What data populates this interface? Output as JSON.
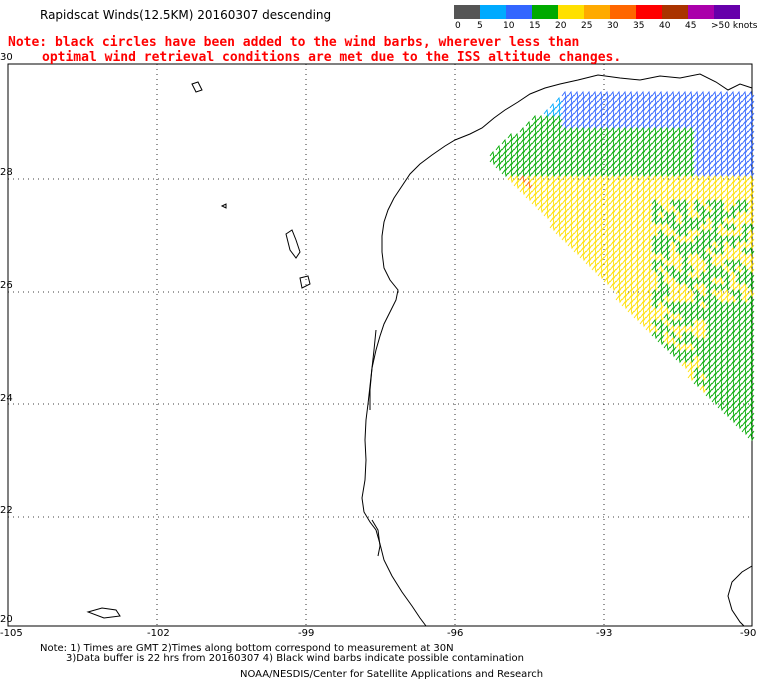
{
  "title": "Rapidscat Winds(12.5KM) 20160307 descending",
  "note": {
    "line1": "Note: black circles have been added to the wind barbs, wherever less than",
    "line2": "optimal wind retrieval conditions are met due to the ISS altitude changes."
  },
  "legend": {
    "labels": [
      "0",
      "5",
      "10",
      "15",
      "20",
      "25",
      "30",
      "35",
      "40",
      "45",
      ">50 knots"
    ],
    "colors": [
      "#555555",
      "#00aaff",
      "#3366ff",
      "#00aa00",
      "#ffe000",
      "#ffaa00",
      "#ff6600",
      "#ff0000",
      "#aa3300",
      "#aa00aa",
      "#6600aa"
    ]
  },
  "axes": {
    "lat_labels": [
      "30",
      "28",
      "26",
      "24",
      "22",
      "20"
    ],
    "lon_labels": [
      "-105",
      "-102",
      "-99",
      "-96",
      "-93",
      "-90"
    ],
    "lat_range": [
      20,
      30
    ],
    "lon_range": [
      -105,
      -90
    ]
  },
  "footer": {
    "note_line1": "Note: 1) Times are GMT 2)Times along bottom correspond to measurement at 30N",
    "note_line2": "3)Data buffer is 22 hrs from 20160307 4) Black wind barbs indicate possible contamination",
    "credit": "NOAA/NESDIS/Center for Satellite Applications and Research"
  },
  "colors": {
    "coast": "#000000",
    "grid": "#000000",
    "note": "#ff0000"
  }
}
